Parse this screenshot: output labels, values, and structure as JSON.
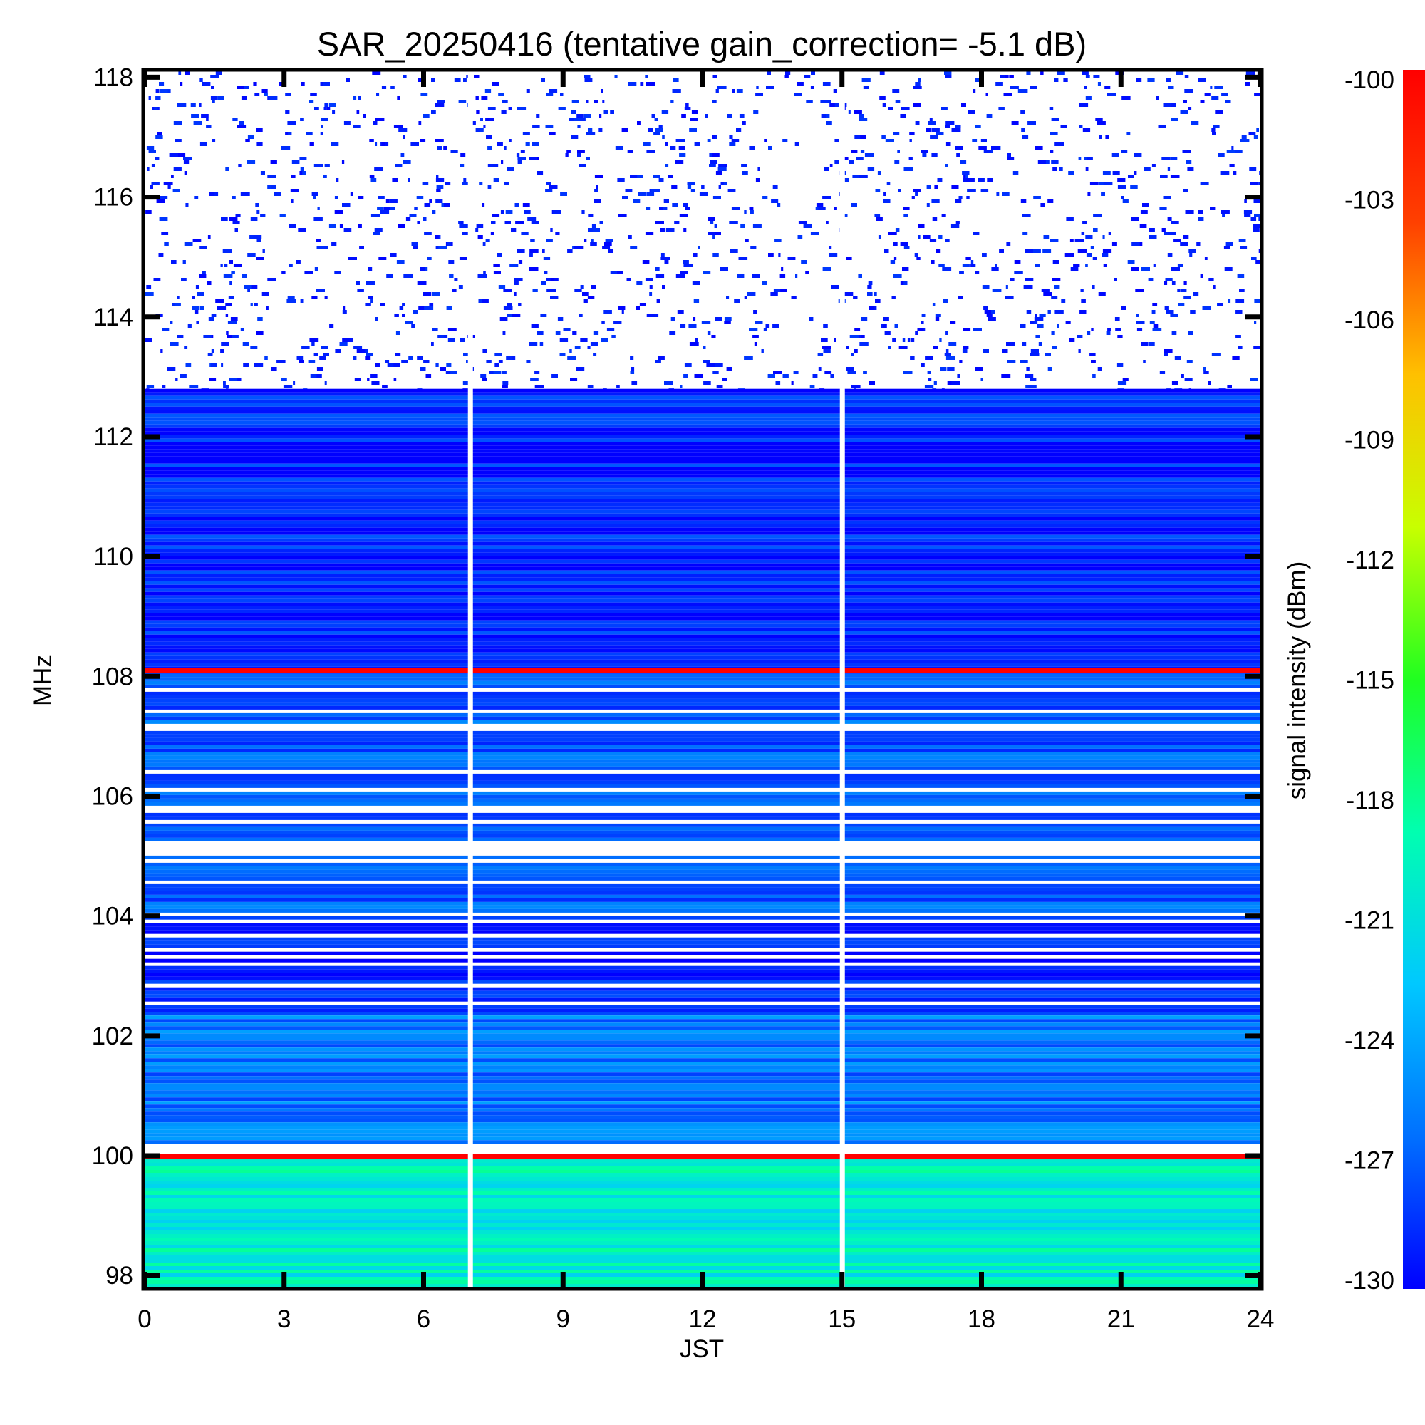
{
  "chart_data": {
    "type": "heatmap",
    "title": "SAR_20250416 (tentative gain_correction= -5.1 dB)",
    "xlabel": "JST",
    "ylabel": "MHz",
    "colorbar_label": "signal intensity (dBm)",
    "xlim": [
      0,
      24
    ],
    "ylim": [
      97.8,
      118.1
    ],
    "x_ticks": [
      0,
      3,
      6,
      9,
      12,
      15,
      18,
      21,
      24
    ],
    "x_tick_labels": [
      "0",
      "3",
      "6",
      "9",
      "12",
      "15",
      "18",
      "21",
      "24"
    ],
    "y_ticks": [
      98,
      100,
      102,
      104,
      106,
      108,
      110,
      112,
      114,
      116,
      118
    ],
    "y_tick_labels": [
      "98",
      "100",
      "102",
      "104",
      "106",
      "108",
      "110",
      "112",
      "114",
      "116",
      "118"
    ],
    "color_range": [
      -130,
      -100
    ],
    "color_ticks": [
      -100,
      -103,
      -106,
      -109,
      -112,
      -115,
      -118,
      -121,
      -124,
      -127,
      -130
    ],
    "color_tick_labels": [
      "-100",
      "-103",
      "-106",
      "-109",
      "-112",
      "-115",
      "-118",
      "-121",
      "-124",
      "-127",
      "-130"
    ],
    "colormap": [
      "#0000ff",
      "#0070ff",
      "#00c8ff",
      "#00ffb0",
      "#20ff20",
      "#c8ff00",
      "#ffc000",
      "#ff4000",
      "#ff0000"
    ],
    "grid": false,
    "data_gaps_jst": [
      7.0,
      15.0
    ],
    "strong_lines_mhz": [
      100.0,
      108.1
    ],
    "regions": [
      {
        "from_mhz": 112.8,
        "to_mhz": 118.1,
        "level_dbm": -130,
        "pattern": "sparse"
      },
      {
        "from_mhz": 108.1,
        "to_mhz": 112.8,
        "level_dbm": -129,
        "pattern": "dense"
      },
      {
        "from_mhz": 104.0,
        "to_mhz": 108.1,
        "level_dbm": -127,
        "pattern": "banded"
      },
      {
        "from_mhz": 102.4,
        "to_mhz": 104.0,
        "level_dbm": -129,
        "pattern": "banded"
      },
      {
        "from_mhz": 100.2,
        "to_mhz": 102.4,
        "level_dbm": -126,
        "pattern": "dense"
      },
      {
        "from_mhz": 97.8,
        "to_mhz": 100.0,
        "level_dbm": -120,
        "pattern": "dense"
      }
    ]
  }
}
